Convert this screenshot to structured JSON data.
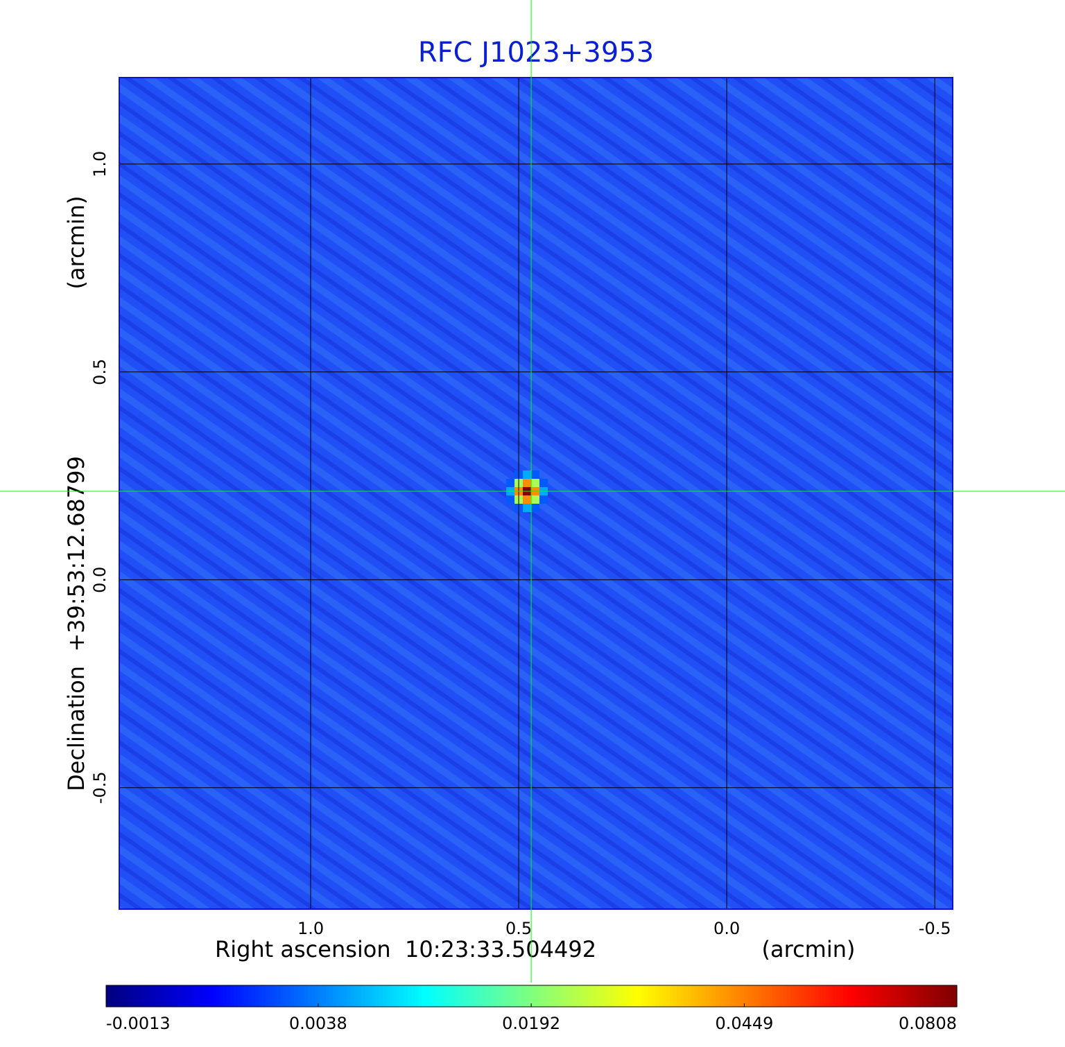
{
  "chart_data": {
    "type": "image",
    "title": "RFC J1023+3953",
    "x_label": "Right ascension  10:23:33.504492",
    "x_unit": "(arcmin)",
    "y_label": "Declination  +39:53:12.68799",
    "y_unit": "(arcmin)",
    "xlim": [
      1.46,
      -0.543
    ],
    "ylim": [
      -0.792,
      1.208
    ],
    "xticks": [
      {
        "value": 1,
        "label": "1.0"
      },
      0.5,
      {
        "value": 0,
        "label": "0.0"
      },
      -0.5
    ],
    "yticks": [
      {
        "value": 1,
        "label": "1.0"
      },
      0.5,
      {
        "value": 0,
        "label": "0.0"
      },
      -0.5
    ],
    "grid": true,
    "colormap": "jet",
    "colorbar": {
      "scale": "sqrt",
      "lim": [
        -0.0013,
        0.0808
      ],
      "ticks": [
        -0.0013,
        0.0038,
        0.0192,
        0.0449,
        0.0808
      ]
    },
    "crosshair": {
      "x": 0.47,
      "y": 0.213,
      "color": "#00ff00"
    }
  }
}
